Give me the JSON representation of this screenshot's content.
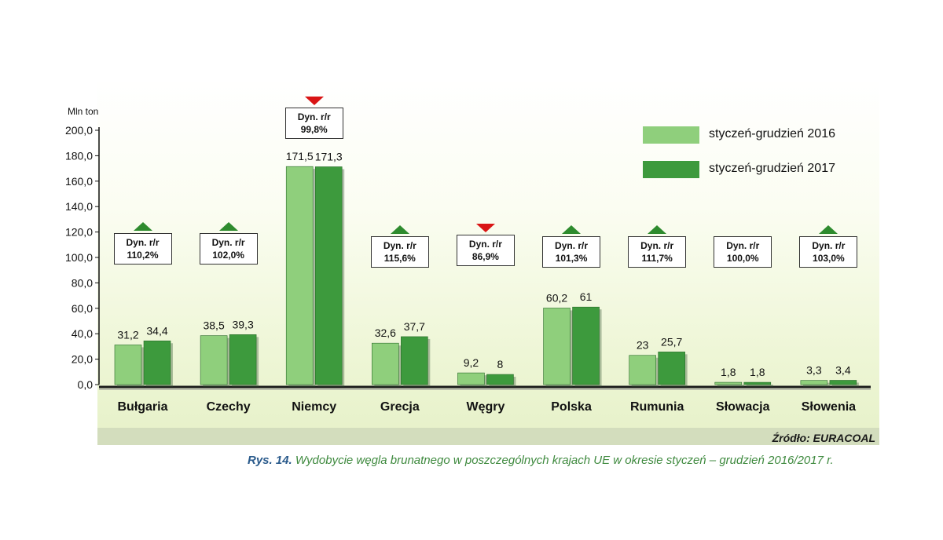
{
  "chart_data": {
    "type": "bar",
    "ylabel": "Mln ton",
    "ylim": [
      0,
      200
    ],
    "yticks": [
      "0,0",
      "20,0",
      "40,0",
      "60,0",
      "80,0",
      "100,0",
      "120,0",
      "140,0",
      "160,0",
      "180,0",
      "200,0"
    ],
    "categories": [
      "Bułgaria",
      "Czechy",
      "Niemcy",
      "Grecja",
      "Węgry",
      "Polska",
      "Rumunia",
      "Słowacja",
      "Słowenia"
    ],
    "series": [
      {
        "name": "styczeń-grudzień 2016",
        "values": [
          31.2,
          38.5,
          171.5,
          32.6,
          9.2,
          60.2,
          23,
          1.8,
          3.3
        ],
        "labels": [
          "31,2",
          "38,5",
          "171,5",
          "32,6",
          "9,2",
          "60,2",
          "23",
          "1,8",
          "3,3"
        ],
        "color": "#8fcf7c"
      },
      {
        "name": "styczeń-grudzień 2017",
        "values": [
          34.4,
          39.3,
          171.3,
          37.7,
          8,
          61,
          25.7,
          1.8,
          3.4
        ],
        "labels": [
          "34,4",
          "39,3",
          "171,3",
          "37,7",
          "8",
          "61",
          "25,7",
          "1,8",
          "3,4"
        ],
        "color": "#3d9a3d"
      }
    ],
    "annotations": [
      {
        "category": "Bułgaria",
        "line1": "Dyn. r/r",
        "line2": "110,2%",
        "direction": "up"
      },
      {
        "category": "Czechy",
        "line1": "Dyn. r/r",
        "line2": "102,0%",
        "direction": "up"
      },
      {
        "category": "Niemcy",
        "line1": "Dyn. r/r",
        "line2": "99,8%",
        "direction": "down"
      },
      {
        "category": "Grecja",
        "line1": "Dyn. r/r",
        "line2": "115,6%",
        "direction": "up"
      },
      {
        "category": "Węgry",
        "line1": "Dyn. r/r",
        "line2": "86,9%",
        "direction": "down"
      },
      {
        "category": "Polska",
        "line1": "Dyn. r/r",
        "line2": "101,3%",
        "direction": "up"
      },
      {
        "category": "Rumunia",
        "line1": "Dyn. r/r",
        "line2": "111,7%",
        "direction": "up"
      },
      {
        "category": "Słowacja",
        "line1": "Dyn. r/r",
        "line2": "100,0%",
        "direction": "none"
      },
      {
        "category": "Słowenia",
        "line1": "Dyn. r/r",
        "line2": "103,0%",
        "direction": "up"
      }
    ],
    "legend_position": "top-right",
    "grid": false
  },
  "source": "Źródło: EURACOAL",
  "caption": {
    "label": "Rys. 14.",
    "text": "Wydobycie węgla brunatnego w poszczególnych krajach UE w okresie styczeń – grudzień 2016/2017 r."
  },
  "colors": {
    "up_marker": "#2e8b2e",
    "down_marker": "#d91515",
    "caption_label": "#2b5b8c",
    "caption_text": "#3f8a3f"
  }
}
